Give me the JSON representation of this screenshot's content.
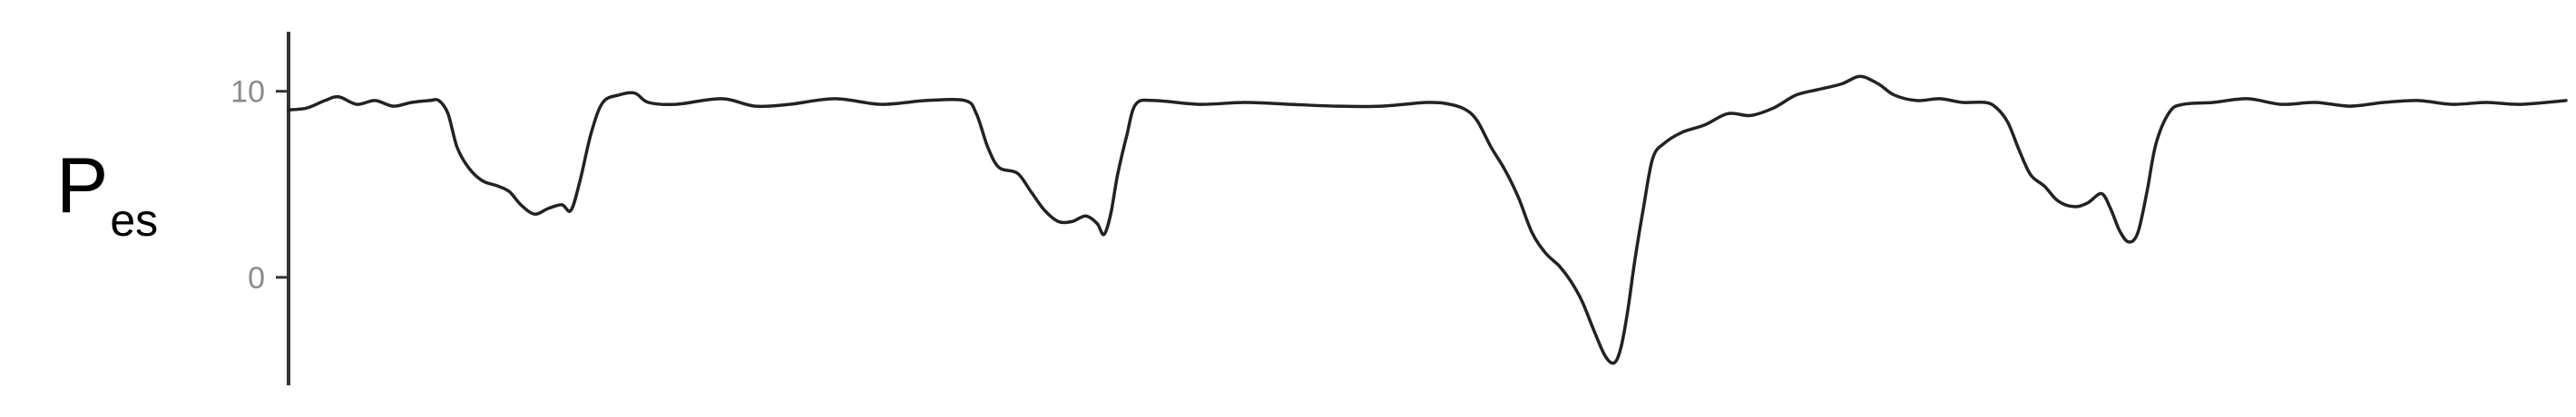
{
  "chart_data": {
    "type": "line",
    "title": "",
    "ylabel": {
      "main": "P",
      "sub": "es"
    },
    "xlabel": "",
    "ylim": [
      -5.8,
      13.2
    ],
    "y_ticks": [
      {
        "value": 10,
        "label": "10"
      },
      {
        "value": 0,
        "label": "0"
      }
    ],
    "grid": false,
    "legend": "none",
    "colors": {
      "line": "#222222",
      "axis": "#333333",
      "tick_label": "#8a8a8a"
    },
    "series": [
      {
        "values": [
          [
            0,
            9.0
          ],
          [
            0.008,
            9.1
          ],
          [
            0.016,
            9.5
          ],
          [
            0.022,
            9.7
          ],
          [
            0.03,
            9.3
          ],
          [
            0.038,
            9.5
          ],
          [
            0.046,
            9.2
          ],
          [
            0.054,
            9.4
          ],
          [
            0.062,
            9.5
          ],
          [
            0.066,
            9.5
          ],
          [
            0.07,
            8.8
          ],
          [
            0.074,
            7.0
          ],
          [
            0.079,
            5.9
          ],
          [
            0.085,
            5.2
          ],
          [
            0.092,
            4.9
          ],
          [
            0.097,
            4.6
          ],
          [
            0.102,
            3.9
          ],
          [
            0.108,
            3.4
          ],
          [
            0.114,
            3.7
          ],
          [
            0.12,
            3.9
          ],
          [
            0.124,
            3.6
          ],
          [
            0.128,
            5.2
          ],
          [
            0.133,
            7.8
          ],
          [
            0.138,
            9.4
          ],
          [
            0.145,
            9.8
          ],
          [
            0.152,
            9.9
          ],
          [
            0.158,
            9.4
          ],
          [
            0.17,
            9.3
          ],
          [
            0.19,
            9.6
          ],
          [
            0.205,
            9.2
          ],
          [
            0.22,
            9.3
          ],
          [
            0.24,
            9.6
          ],
          [
            0.26,
            9.3
          ],
          [
            0.28,
            9.5
          ],
          [
            0.297,
            9.5
          ],
          [
            0.302,
            8.8
          ],
          [
            0.307,
            7.0
          ],
          [
            0.312,
            5.9
          ],
          [
            0.32,
            5.6
          ],
          [
            0.326,
            4.6
          ],
          [
            0.332,
            3.6
          ],
          [
            0.338,
            3.0
          ],
          [
            0.344,
            3.0
          ],
          [
            0.35,
            3.3
          ],
          [
            0.355,
            2.9
          ],
          [
            0.358,
            2.3
          ],
          [
            0.361,
            3.4
          ],
          [
            0.364,
            5.5
          ],
          [
            0.368,
            7.6
          ],
          [
            0.372,
            9.3
          ],
          [
            0.38,
            9.5
          ],
          [
            0.4,
            9.3
          ],
          [
            0.42,
            9.4
          ],
          [
            0.44,
            9.3
          ],
          [
            0.46,
            9.2
          ],
          [
            0.48,
            9.2
          ],
          [
            0.5,
            9.4
          ],
          [
            0.51,
            9.3
          ],
          [
            0.517,
            9.0
          ],
          [
            0.522,
            8.4
          ],
          [
            0.528,
            7.0
          ],
          [
            0.534,
            5.8
          ],
          [
            0.54,
            4.3
          ],
          [
            0.546,
            2.4
          ],
          [
            0.552,
            1.3
          ],
          [
            0.558,
            0.6
          ],
          [
            0.563,
            -0.2
          ],
          [
            0.568,
            -1.3
          ],
          [
            0.573,
            -2.8
          ],
          [
            0.578,
            -4.2
          ],
          [
            0.582,
            -4.6
          ],
          [
            0.585,
            -3.8
          ],
          [
            0.588,
            -1.8
          ],
          [
            0.591,
            0.8
          ],
          [
            0.595,
            3.8
          ],
          [
            0.599,
            6.4
          ],
          [
            0.604,
            7.2
          ],
          [
            0.612,
            7.8
          ],
          [
            0.622,
            8.2
          ],
          [
            0.632,
            8.8
          ],
          [
            0.642,
            8.7
          ],
          [
            0.652,
            9.1
          ],
          [
            0.662,
            9.8
          ],
          [
            0.672,
            10.1
          ],
          [
            0.682,
            10.4
          ],
          [
            0.69,
            10.8
          ],
          [
            0.698,
            10.4
          ],
          [
            0.705,
            9.8
          ],
          [
            0.715,
            9.5
          ],
          [
            0.725,
            9.6
          ],
          [
            0.735,
            9.4
          ],
          [
            0.745,
            9.4
          ],
          [
            0.75,
            9.1
          ],
          [
            0.755,
            8.3
          ],
          [
            0.76,
            6.8
          ],
          [
            0.765,
            5.5
          ],
          [
            0.771,
            4.9
          ],
          [
            0.777,
            4.1
          ],
          [
            0.784,
            3.8
          ],
          [
            0.79,
            4.0
          ],
          [
            0.796,
            4.5
          ],
          [
            0.8,
            3.7
          ],
          [
            0.804,
            2.5
          ],
          [
            0.808,
            1.9
          ],
          [
            0.812,
            2.4
          ],
          [
            0.816,
            4.6
          ],
          [
            0.82,
            7.2
          ],
          [
            0.826,
            8.9
          ],
          [
            0.832,
            9.3
          ],
          [
            0.845,
            9.4
          ],
          [
            0.86,
            9.6
          ],
          [
            0.875,
            9.3
          ],
          [
            0.89,
            9.4
          ],
          [
            0.905,
            9.2
          ],
          [
            0.92,
            9.4
          ],
          [
            0.935,
            9.5
          ],
          [
            0.95,
            9.3
          ],
          [
            0.965,
            9.4
          ],
          [
            0.98,
            9.3
          ],
          [
            1.0,
            9.5
          ]
        ]
      }
    ]
  }
}
